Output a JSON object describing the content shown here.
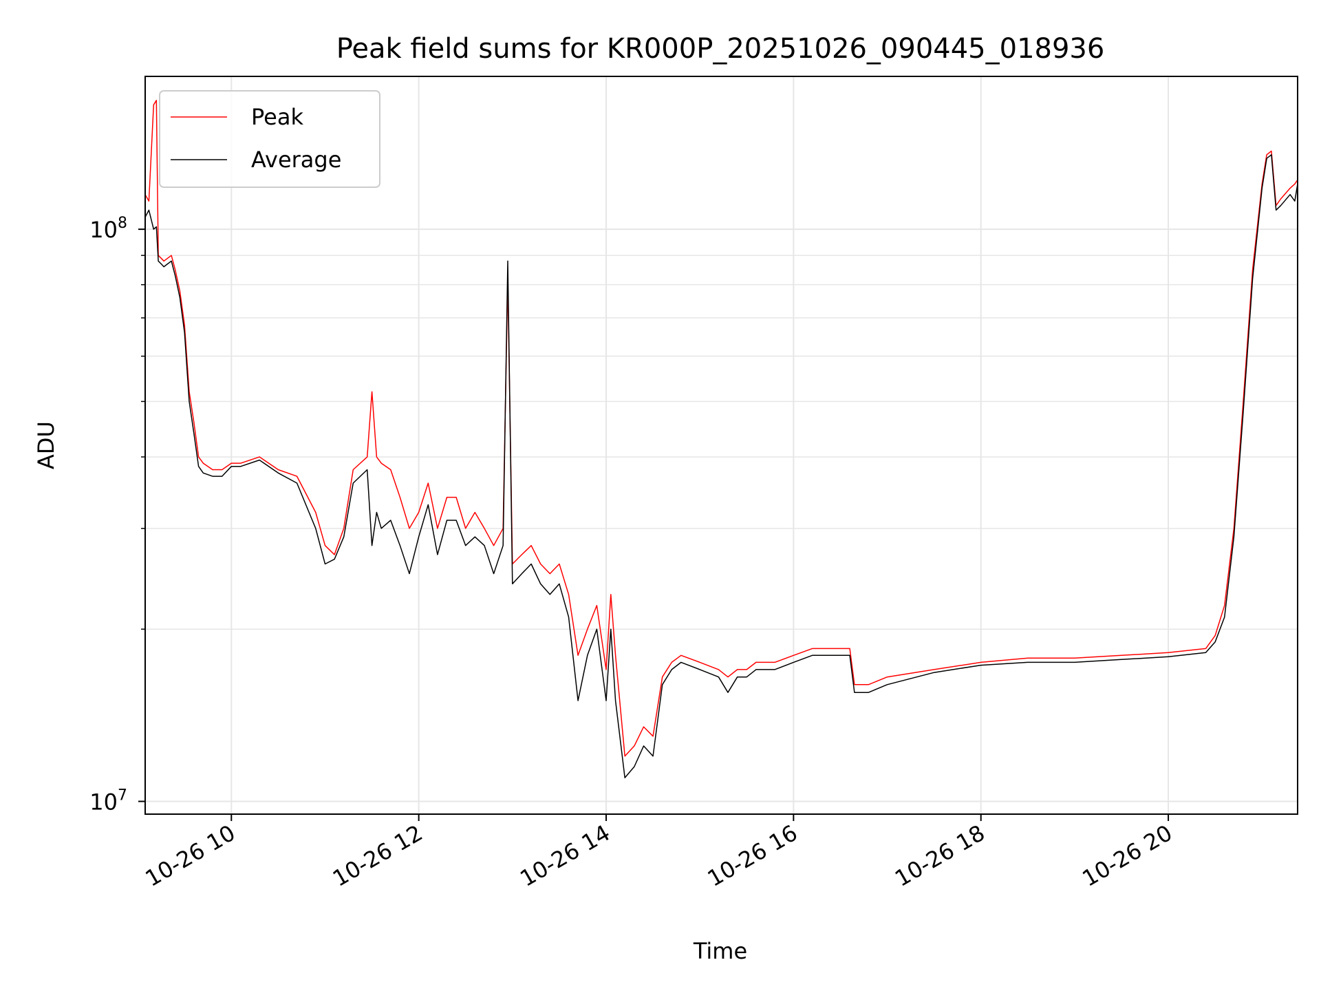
{
  "chart_data": {
    "type": "line",
    "title": "Peak field sums for KR000P_20251026_090445_018936",
    "xlabel": "Time",
    "ylabel": "ADU",
    "yscale": "log",
    "ylim": [
      9500000,
      185000000
    ],
    "xlim": [
      9.08,
      21.38
    ],
    "x_unit": "hours on 2025-10-26",
    "x_ticks": [
      {
        "value": 10,
        "label": "10-26 10"
      },
      {
        "value": 12,
        "label": "10-26 12"
      },
      {
        "value": 14,
        "label": "10-26 14"
      },
      {
        "value": 16,
        "label": "10-26 16"
      },
      {
        "value": 18,
        "label": "10-26 18"
      },
      {
        "value": 20,
        "label": "10-26 20"
      }
    ],
    "y_ticks": [
      {
        "value": 10000000,
        "base": "10",
        "exp": "7"
      },
      {
        "value": 100000000,
        "base": "10",
        "exp": "8"
      }
    ],
    "grid": true,
    "legend_position": "top-left",
    "series": [
      {
        "name": "Peak",
        "color": "#ff0000",
        "x": [
          9.08,
          9.12,
          9.17,
          9.2,
          9.22,
          9.25,
          9.28,
          9.32,
          9.36,
          9.4,
          9.45,
          9.5,
          9.55,
          9.6,
          9.65,
          9.7,
          9.8,
          9.9,
          10.0,
          10.1,
          10.3,
          10.5,
          10.7,
          10.9,
          11.0,
          11.1,
          11.2,
          11.3,
          11.45,
          11.5,
          11.55,
          11.6,
          11.7,
          11.8,
          11.9,
          12.0,
          12.1,
          12.2,
          12.3,
          12.4,
          12.5,
          12.6,
          12.7,
          12.8,
          12.9,
          12.95,
          13.0,
          13.1,
          13.2,
          13.3,
          13.4,
          13.5,
          13.6,
          13.7,
          13.8,
          13.9,
          14.0,
          14.05,
          14.1,
          14.2,
          14.3,
          14.4,
          14.5,
          14.6,
          14.7,
          14.8,
          15.0,
          15.2,
          15.3,
          15.4,
          15.5,
          15.6,
          15.8,
          16.0,
          16.2,
          16.4,
          16.6,
          16.65,
          16.8,
          17.0,
          17.5,
          18.0,
          18.5,
          19.0,
          19.5,
          20.0,
          20.4,
          20.5,
          20.6,
          20.7,
          20.8,
          20.9,
          21.0,
          21.05,
          21.1,
          21.15,
          21.2,
          21.3,
          21.35,
          21.38
        ],
        "y": [
          115000000,
          112000000,
          165000000,
          168000000,
          90000000,
          89000000,
          88000000,
          89000000,
          90000000,
          85000000,
          78000000,
          68000000,
          52000000,
          46000000,
          40000000,
          39000000,
          38000000,
          38000000,
          39000000,
          39000000,
          40000000,
          38000000,
          37000000,
          32000000,
          28000000,
          27000000,
          30000000,
          38000000,
          40000000,
          52000000,
          40000000,
          39000000,
          38000000,
          34000000,
          30000000,
          32000000,
          36000000,
          30000000,
          34000000,
          34000000,
          30000000,
          32000000,
          30000000,
          28000000,
          30000000,
          82000000,
          26000000,
          27000000,
          28000000,
          26000000,
          25000000,
          26000000,
          23000000,
          18000000,
          20000000,
          22000000,
          17000000,
          23000000,
          18000000,
          12000000,
          12500000,
          13500000,
          13000000,
          16500000,
          17500000,
          18000000,
          17500000,
          17000000,
          16500000,
          17000000,
          17000000,
          17500000,
          17500000,
          18000000,
          18500000,
          18500000,
          18500000,
          16000000,
          16000000,
          16500000,
          17000000,
          17500000,
          17800000,
          17800000,
          18000000,
          18200000,
          18500000,
          19500000,
          22000000,
          30000000,
          50000000,
          85000000,
          120000000,
          135000000,
          137000000,
          110000000,
          113000000,
          118000000,
          120000000,
          122000000
        ]
      },
      {
        "name": "Average",
        "color": "#000000",
        "x": [
          9.08,
          9.12,
          9.17,
          9.2,
          9.22,
          9.25,
          9.28,
          9.32,
          9.36,
          9.4,
          9.45,
          9.5,
          9.55,
          9.6,
          9.65,
          9.7,
          9.8,
          9.9,
          10.0,
          10.1,
          10.3,
          10.5,
          10.7,
          10.9,
          11.0,
          11.1,
          11.2,
          11.3,
          11.45,
          11.5,
          11.55,
          11.6,
          11.7,
          11.8,
          11.9,
          12.0,
          12.1,
          12.2,
          12.3,
          12.4,
          12.5,
          12.6,
          12.7,
          12.8,
          12.9,
          12.95,
          13.0,
          13.1,
          13.2,
          13.3,
          13.4,
          13.5,
          13.6,
          13.7,
          13.8,
          13.9,
          14.0,
          14.05,
          14.1,
          14.2,
          14.3,
          14.4,
          14.5,
          14.6,
          14.7,
          14.8,
          15.0,
          15.2,
          15.3,
          15.4,
          15.5,
          15.6,
          15.8,
          16.0,
          16.2,
          16.4,
          16.6,
          16.65,
          16.8,
          17.0,
          17.5,
          18.0,
          18.5,
          19.0,
          19.5,
          20.0,
          20.4,
          20.5,
          20.6,
          20.7,
          20.8,
          20.9,
          21.0,
          21.05,
          21.1,
          21.15,
          21.2,
          21.3,
          21.35,
          21.38
        ],
        "y": [
          105000000,
          108000000,
          100000000,
          101000000,
          88000000,
          87000000,
          86000000,
          87000000,
          88000000,
          83000000,
          76000000,
          66000000,
          50000000,
          44000000,
          38500000,
          37500000,
          37000000,
          37000000,
          38500000,
          38500000,
          39500000,
          37500000,
          36000000,
          30000000,
          26000000,
          26500000,
          29000000,
          36000000,
          38000000,
          28000000,
          32000000,
          30000000,
          31000000,
          28000000,
          25000000,
          29000000,
          33000000,
          27000000,
          31000000,
          31000000,
          28000000,
          29000000,
          28000000,
          25000000,
          28000000,
          88000000,
          24000000,
          25000000,
          26000000,
          24000000,
          23000000,
          24000000,
          21000000,
          15000000,
          18000000,
          20000000,
          15000000,
          20000000,
          15000000,
          11000000,
          11500000,
          12500000,
          12000000,
          16000000,
          17000000,
          17500000,
          17000000,
          16500000,
          15500000,
          16500000,
          16500000,
          17000000,
          17000000,
          17500000,
          18000000,
          18000000,
          18000000,
          15500000,
          15500000,
          16000000,
          16800000,
          17300000,
          17500000,
          17500000,
          17700000,
          17900000,
          18200000,
          19000000,
          21000000,
          29000000,
          48000000,
          82000000,
          118000000,
          133000000,
          135000000,
          108000000,
          110000000,
          115000000,
          112000000,
          120000000
        ]
      }
    ],
    "annotations": []
  }
}
